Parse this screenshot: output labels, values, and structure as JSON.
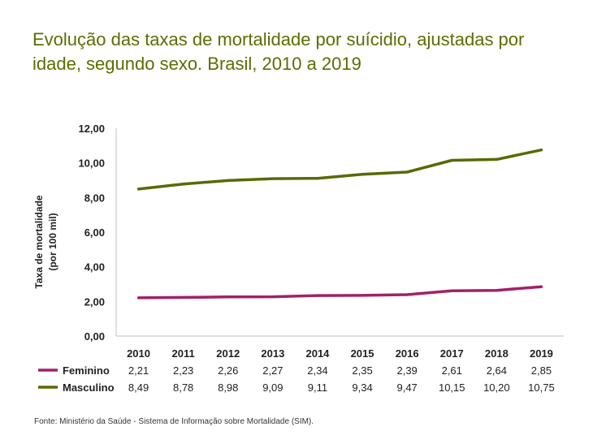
{
  "title": "Evolução das taxas de mortalidade por suícidio, ajustadas por idade, segundo sexo. Brasil, 2010 a 2019",
  "source": "Fonte: Ministério da Saúde - Sistema de Informação sobre Mortalidade (SIM).",
  "colors": {
    "feminino": "#a2216a",
    "masculino": "#566b00",
    "title": "#5a6e00",
    "axis": "#bfbfbf"
  },
  "chart_data": {
    "type": "line",
    "title": "Evolução das taxas de mortalidade por suícidio, ajustadas por idade, segundo sexo. Brasil, 2010 a 2019",
    "ylabel_line1": "Taxa de mortalidade",
    "ylabel_line2": "(por 100 mil)",
    "xlabel": "",
    "ylim": [
      0,
      12
    ],
    "yticks": [
      "0,00",
      "2,00",
      "4,00",
      "6,00",
      "8,00",
      "10,00",
      "12,00"
    ],
    "ytick_values": [
      0,
      2,
      4,
      6,
      8,
      10,
      12
    ],
    "categories": [
      "2010",
      "2011",
      "2012",
      "2013",
      "2014",
      "2015",
      "2016",
      "2017",
      "2018",
      "2019"
    ],
    "series": [
      {
        "name": "Feminino",
        "values": [
          2.21,
          2.23,
          2.26,
          2.27,
          2.34,
          2.35,
          2.39,
          2.61,
          2.64,
          2.85
        ],
        "labels": [
          "2,21",
          "2,23",
          "2,26",
          "2,27",
          "2,34",
          "2,35",
          "2,39",
          "2,61",
          "2,64",
          "2,85"
        ]
      },
      {
        "name": "Masculino",
        "values": [
          8.49,
          8.78,
          8.98,
          9.09,
          9.11,
          9.34,
          9.47,
          10.15,
          10.2,
          10.75
        ],
        "labels": [
          "8,49",
          "8,78",
          "8,98",
          "9,09",
          "9,11",
          "9,34",
          "9,47",
          "10,15",
          "10,20",
          "10,75"
        ]
      }
    ],
    "legend": "data-table-below"
  }
}
